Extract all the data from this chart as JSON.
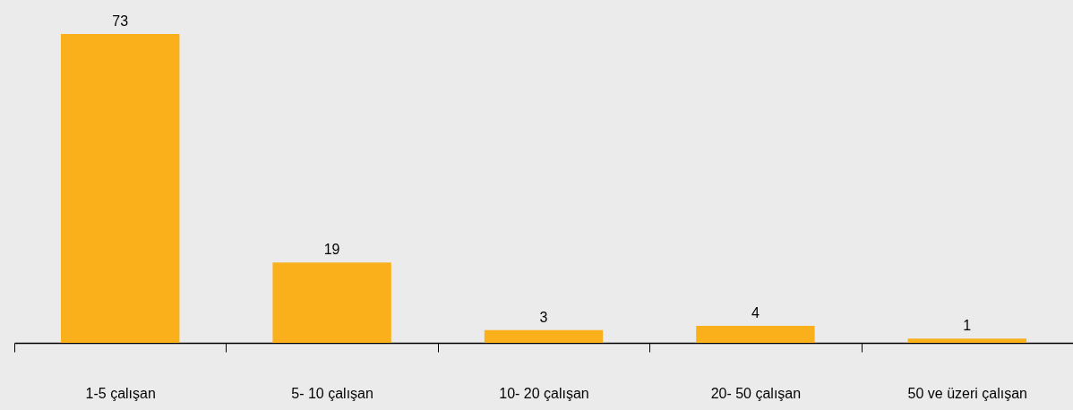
{
  "chart_data": {
    "type": "bar",
    "categories": [
      "1-5 çalışan",
      "5- 10 çalışan",
      "10- 20 çalışan",
      "20- 50 çalışan",
      "50 ve üzeri çalışan"
    ],
    "values": [
      73,
      19,
      3,
      4,
      1
    ],
    "color": "#f9b01b",
    "data_labels": true,
    "tick_labels": "x"
  }
}
